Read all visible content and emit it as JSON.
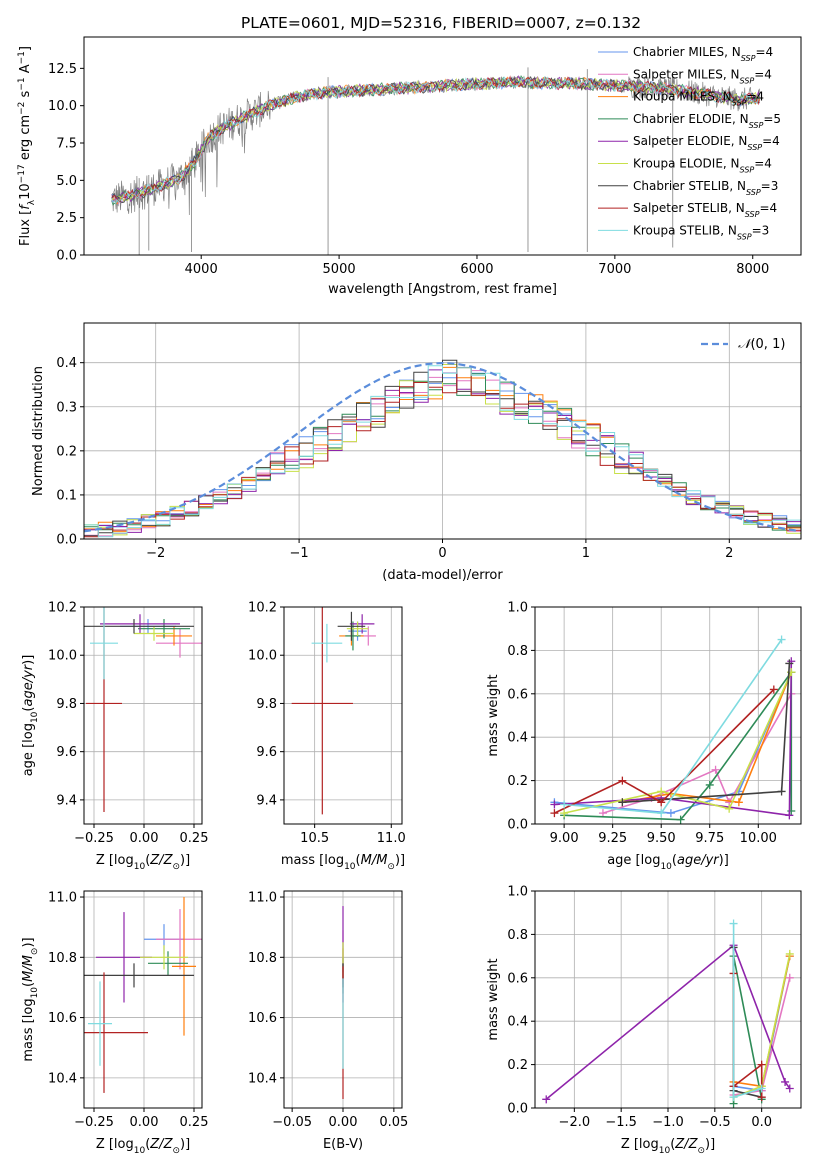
{
  "figure": {
    "title": "PLATE=0601, MJD=52316, FIBERID=0007, z=0.132"
  },
  "series_names": [
    "Chabrier MILES, N_SSP=4",
    "Salpeter MILES, N_SSP=4",
    "Kroupa MILES, N_SSP=4",
    "Chabrier ELODIE, N_SSP=5",
    "Salpeter ELODIE, N_SSP=4",
    "Kroupa ELODIE, N_SSP=4",
    "Chabrier STELIB, N_SSP=3",
    "Salpeter STELIB, N_SSP=4",
    "Kroupa STELIB, N_SSP=3"
  ],
  "legend_items": [
    {
      "base": "Chabrier MILES, N",
      "sub": "SSP",
      "tail": "=4"
    },
    {
      "base": "Salpeter MILES, N",
      "sub": "SSP",
      "tail": "=4"
    },
    {
      "base": "Kroupa MILES, N",
      "sub": "SSP",
      "tail": "=4"
    },
    {
      "base": "Chabrier ELODIE, N",
      "sub": "SSP",
      "tail": "=5"
    },
    {
      "base": "Salpeter ELODIE, N",
      "sub": "SSP",
      "tail": "=4"
    },
    {
      "base": "Kroupa ELODIE, N",
      "sub": "SSP",
      "tail": "=4"
    },
    {
      "base": "Chabrier STELIB, N",
      "sub": "SSP",
      "tail": "=3"
    },
    {
      "base": "Salpeter STELIB, N",
      "sub": "SSP",
      "tail": "=4"
    },
    {
      "base": "Kroupa STELIB, N",
      "sub": "SSP",
      "tail": "=3"
    }
  ],
  "colors": [
    "#6495ED",
    "#E377C2",
    "#FF7F0E",
    "#2E8B57",
    "#8E24AA",
    "#C8E04A",
    "#404040",
    "#B22222",
    "#7FDBE0"
  ],
  "chart_data": [
    {
      "id": "spectrum",
      "type": "line",
      "xlabel": "wavelength [Angstrom, rest frame]",
      "ylabel": "Flux [f_λ 10^-17 erg cm^-2 s^-1 A^-1]",
      "xlim": [
        3150,
        8350
      ],
      "ylim": [
        0,
        14.6
      ],
      "xticks": [
        4000,
        5000,
        6000,
        7000,
        8000
      ],
      "yticks": [
        0.0,
        2.5,
        5.0,
        7.5,
        10.0,
        12.5
      ],
      "grid": false,
      "legend": "top-right",
      "data_color": "#808080",
      "continuum": {
        "x": [
          3350,
          3500,
          3700,
          3850,
          3950,
          4050,
          4150,
          4300,
          4500,
          4700,
          4900,
          5100,
          5300,
          5500,
          5700,
          5900,
          6100,
          6300,
          6500,
          6700,
          6900,
          7100,
          7300,
          7500,
          7700,
          7900,
          8050
        ],
        "y": [
          3.7,
          4.0,
          4.6,
          5.2,
          6.2,
          7.8,
          8.5,
          9.2,
          10.0,
          10.6,
          10.9,
          11.0,
          11.1,
          11.2,
          11.3,
          11.4,
          11.5,
          11.6,
          11.5,
          11.5,
          11.4,
          11.3,
          11.2,
          11.0,
          10.7,
          10.4,
          10.5
        ]
      },
      "series_note": "nine model fits overlaid on the observed spectrum; same legend as above"
    },
    {
      "id": "residuals",
      "type": "histogram",
      "xlabel": "(data-model)/error",
      "ylabel": "Normed distribution",
      "xlim": [
        -2.5,
        2.5
      ],
      "ylim": [
        0,
        0.49
      ],
      "xticks": [
        -2,
        -1,
        0,
        1,
        2
      ],
      "yticks": [
        0.0,
        0.1,
        0.2,
        0.3,
        0.4
      ],
      "grid": true,
      "legend": "top-right",
      "gaussian_label": "N(0,1)",
      "gaussian_color": "#5B8DDB",
      "bin_width": 0.1,
      "bin_start": -2.5,
      "reference_values": [
        0.018,
        0.022,
        0.027,
        0.032,
        0.04,
        0.047,
        0.058,
        0.07,
        0.082,
        0.097,
        0.108,
        0.125,
        0.145,
        0.165,
        0.18,
        0.2,
        0.215,
        0.235,
        0.255,
        0.275,
        0.29,
        0.31,
        0.325,
        0.34,
        0.355,
        0.37,
        0.355,
        0.345,
        0.34,
        0.32,
        0.305,
        0.29,
        0.275,
        0.26,
        0.245,
        0.225,
        0.205,
        0.185,
        0.165,
        0.145,
        0.13,
        0.11,
        0.095,
        0.082,
        0.07,
        0.06,
        0.05,
        0.042,
        0.035,
        0.03
      ]
    },
    {
      "id": "age_vs_Z",
      "type": "errorbar",
      "xlabel": "Z [log10(Z/Z⊙)]",
      "ylabel": "age [log10(age/yr)]",
      "xlim": [
        -0.3,
        0.29
      ],
      "ylim": [
        9.3,
        10.2
      ],
      "xticks": [
        -0.25,
        0.0,
        0.25
      ],
      "ytick_values": [
        9.4,
        9.6,
        9.8,
        10.0,
        10.2
      ],
      "grid": true,
      "points": [
        {
          "x": 0.02,
          "y": 10.12,
          "xerr": 0.14,
          "yerr": 0.03
        },
        {
          "x": 0.18,
          "y": 10.05,
          "xerr": 0.12,
          "yerr": 0.06
        },
        {
          "x": 0.15,
          "y": 10.08,
          "xerr": 0.09,
          "yerr": 0.04
        },
        {
          "x": 0.1,
          "y": 10.11,
          "xerr": 0.13,
          "yerr": 0.04
        },
        {
          "x": -0.02,
          "y": 10.13,
          "xerr": 0.2,
          "yerr": 0.04
        },
        {
          "x": 0.05,
          "y": 10.09,
          "xerr": 0.1,
          "yerr": 0.03
        },
        {
          "x": -0.05,
          "y": 10.12,
          "xerr": 0.3,
          "yerr": 0.03
        },
        {
          "x": -0.2,
          "y": 9.8,
          "xerr": 0.09,
          "yerr": 0.45
        },
        {
          "x": -0.2,
          "y": 10.05,
          "xerr": 0.07,
          "yerr": 0.15
        }
      ]
    },
    {
      "id": "age_vs_mass",
      "type": "errorbar",
      "xlabel": "mass [log10(M/M⊙)]",
      "ylabel": "",
      "xlim": [
        10.3,
        11.07
      ],
      "ylim": [
        9.3,
        10.2
      ],
      "xticks": [
        10.5,
        11.0
      ],
      "ytick_values": [
        9.4,
        9.6,
        9.8,
        10.0,
        10.2
      ],
      "grid": true,
      "points": [
        {
          "x": 10.78,
          "y": 10.1,
          "xerr": 0.06,
          "yerr": 0.04
        },
        {
          "x": 10.85,
          "y": 10.08,
          "xerr": 0.05,
          "yerr": 0.04
        },
        {
          "x": 10.74,
          "y": 10.08,
          "xerr": 0.08,
          "yerr": 0.04
        },
        {
          "x": 10.75,
          "y": 10.08,
          "xerr": 0.05,
          "yerr": 0.06
        },
        {
          "x": 10.81,
          "y": 10.13,
          "xerr": 0.08,
          "yerr": 0.04
        },
        {
          "x": 10.78,
          "y": 10.11,
          "xerr": 0.07,
          "yerr": 0.03
        },
        {
          "x": 10.74,
          "y": 10.12,
          "xerr": 0.09,
          "yerr": 0.06
        },
        {
          "x": 10.55,
          "y": 9.8,
          "xerr": 0.2,
          "yerr": 0.46
        },
        {
          "x": 10.58,
          "y": 10.05,
          "xerr": 0.1,
          "yerr": 0.08
        }
      ]
    },
    {
      "id": "massweight_vs_age",
      "type": "line",
      "xlabel": "age [log10(age/yr)]",
      "ylabel": "mass weight",
      "xlim": [
        8.85,
        10.22
      ],
      "ylim": [
        0,
        1
      ],
      "xticks": [
        9.0,
        9.25,
        9.5,
        9.75,
        10.0
      ],
      "ytick_values": [
        0.0,
        0.2,
        0.4,
        0.6,
        0.8,
        1.0
      ],
      "grid": true,
      "series": [
        {
          "x": [
            8.95,
            9.55,
            9.9,
            10.17
          ],
          "y": [
            0.1,
            0.05,
            0.15,
            0.7
          ]
        },
        {
          "x": [
            9.2,
            9.45,
            9.78,
            9.85,
            10.17
          ],
          "y": [
            0.05,
            0.12,
            0.25,
            0.1,
            0.6
          ]
        },
        {
          "x": [
            9.3,
            9.55,
            9.9,
            10.17
          ],
          "y": [
            0.1,
            0.14,
            0.1,
            0.7
          ]
        },
        {
          "x": [
            9.0,
            9.6,
            9.75,
            10.17,
            10.17
          ],
          "y": [
            0.04,
            0.02,
            0.18,
            0.7,
            0.06
          ]
        },
        {
          "x": [
            8.95,
            9.5,
            10.16,
            10.17
          ],
          "y": [
            0.09,
            0.12,
            0.04,
            0.75
          ]
        },
        {
          "x": [
            9.0,
            9.5,
            9.85,
            10.17
          ],
          "y": [
            0.05,
            0.15,
            0.07,
            0.7
          ]
        },
        {
          "x": [
            9.3,
            10.12,
            10.16
          ],
          "y": [
            0.1,
            0.15,
            0.74
          ]
        },
        {
          "x": [
            8.95,
            9.3,
            9.5,
            10.08
          ],
          "y": [
            0.05,
            0.2,
            0.1,
            0.62
          ]
        },
        {
          "x": [
            9.0,
            9.5,
            10.12
          ],
          "y": [
            0.09,
            0.05,
            0.85
          ]
        }
      ]
    },
    {
      "id": "mass_vs_Z",
      "type": "errorbar",
      "xlabel": "Z [log10(Z/Z⊙)]",
      "ylabel": "mass [log10(M/M⊙)]",
      "xlim": [
        -0.3,
        0.29
      ],
      "ylim": [
        10.3,
        11.02
      ],
      "xticks": [
        -0.25,
        0.0,
        0.25
      ],
      "ytick_values": [
        10.4,
        10.6,
        10.8,
        11.0
      ],
      "grid": true,
      "points": [
        {
          "x": 0.1,
          "y": 10.86,
          "xerr": 0.1,
          "yerr": 0.05
        },
        {
          "x": 0.18,
          "y": 10.86,
          "xerr": 0.12,
          "yerr": 0.1
        },
        {
          "x": 0.2,
          "y": 10.77,
          "xerr": 0.06,
          "yerr": 0.23
        },
        {
          "x": 0.12,
          "y": 10.78,
          "xerr": 0.1,
          "yerr": 0.04
        },
        {
          "x": -0.1,
          "y": 10.8,
          "xerr": 0.14,
          "yerr": 0.15
        },
        {
          "x": 0.1,
          "y": 10.8,
          "xerr": 0.12,
          "yerr": 0.04
        },
        {
          "x": -0.05,
          "y": 10.74,
          "xerr": 0.3,
          "yerr": 0.04
        },
        {
          "x": -0.2,
          "y": 10.55,
          "xerr": 0.22,
          "yerr": 0.2
        },
        {
          "x": -0.22,
          "y": 10.58,
          "xerr": 0.06,
          "yerr": 0.14
        }
      ]
    },
    {
      "id": "mass_vs_EBV",
      "type": "errorbar",
      "xlabel": "E(B-V)",
      "ylabel": "",
      "xlim": [
        -0.058,
        0.058
      ],
      "ylim": [
        10.3,
        11.02
      ],
      "xticks": [
        -0.05,
        0.0,
        0.05
      ],
      "ytick_values": [
        10.4,
        10.6,
        10.8,
        11.0
      ],
      "grid": true,
      "points": [
        {
          "x": 0.0,
          "y": 10.8,
          "xerr": 0.0,
          "yerr": 0.05
        },
        {
          "x": 0.0,
          "y": 10.8,
          "xerr": 0.0,
          "yerr": 0.09
        },
        {
          "x": 0.0,
          "y": 10.78,
          "xerr": 0.0,
          "yerr": 0.05
        },
        {
          "x": 0.0,
          "y": 10.74,
          "xerr": 0.0,
          "yerr": 0.06
        },
        {
          "x": 0.0,
          "y": 10.81,
          "xerr": 0.0,
          "yerr": 0.16
        },
        {
          "x": 0.0,
          "y": 10.79,
          "xerr": 0.0,
          "yerr": 0.06
        },
        {
          "x": 0.0,
          "y": 10.74,
          "xerr": 0.0,
          "yerr": 0.04
        },
        {
          "x": 0.0,
          "y": 10.55,
          "xerr": 0.0,
          "yerr": 0.22
        },
        {
          "x": 0.0,
          "y": 10.58,
          "xerr": 0.0,
          "yerr": 0.15
        }
      ]
    },
    {
      "id": "massweight_vs_Z",
      "type": "line",
      "xlabel": "Z [log10(Z/Z⊙)]",
      "ylabel": "mass weight",
      "xlim": [
        -2.42,
        0.42
      ],
      "ylim": [
        0,
        1
      ],
      "xticks": [
        -2.0,
        -1.5,
        -1.0,
        -0.5,
        0.0
      ],
      "ytick_values": [
        0.0,
        0.2,
        0.4,
        0.6,
        0.8,
        1.0
      ],
      "grid": true,
      "series": [
        {
          "x": [
            -0.3,
            0.0,
            0.3
          ],
          "y": [
            0.1,
            0.08,
            0.7
          ]
        },
        {
          "x": [
            -0.3,
            0.0,
            0.3
          ],
          "y": [
            0.06,
            0.08,
            0.6
          ]
        },
        {
          "x": [
            -0.3,
            0.0,
            0.3
          ],
          "y": [
            0.12,
            0.1,
            0.7
          ]
        },
        {
          "x": [
            -0.3,
            -0.3,
            0.0
          ],
          "y": [
            0.02,
            0.7,
            0.04
          ]
        },
        {
          "x": [
            -2.3,
            -0.3,
            0.25,
            0.3
          ],
          "y": [
            0.04,
            0.75,
            0.12,
            0.09
          ]
        },
        {
          "x": [
            -0.3,
            0.0,
            0.3
          ],
          "y": [
            0.05,
            0.1,
            0.71
          ]
        },
        {
          "x": [
            -0.3,
            -0.3,
            0.0
          ],
          "y": [
            0.74,
            0.08,
            0.05
          ]
        },
        {
          "x": [
            -0.3,
            -0.3,
            0.0,
            0.0
          ],
          "y": [
            0.62,
            0.1,
            0.2,
            0.05
          ]
        },
        {
          "x": [
            -0.3,
            -0.3,
            0.0
          ],
          "y": [
            0.85,
            0.05,
            0.09
          ]
        }
      ]
    }
  ]
}
